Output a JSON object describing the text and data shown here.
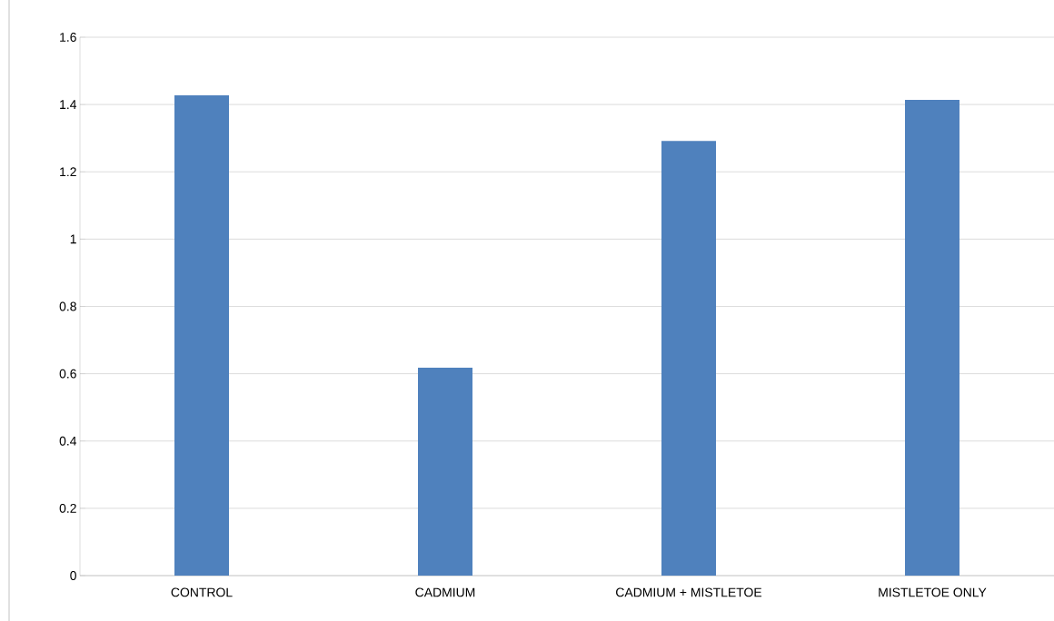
{
  "chart_data": {
    "type": "bar",
    "categories": [
      "CONTROL",
      "CADMIUM",
      "CADMIUM + MISTLETOE",
      "MISTLETOE ONLY"
    ],
    "values": [
      1.427,
      0.618,
      1.292,
      1.414
    ],
    "color": "#4f81bd",
    "ylim": [
      0,
      1.6
    ],
    "yticks": [
      0,
      0.2,
      0.4,
      0.6,
      0.8,
      1,
      1.2,
      1.4,
      1.6
    ],
    "grid": "y"
  }
}
